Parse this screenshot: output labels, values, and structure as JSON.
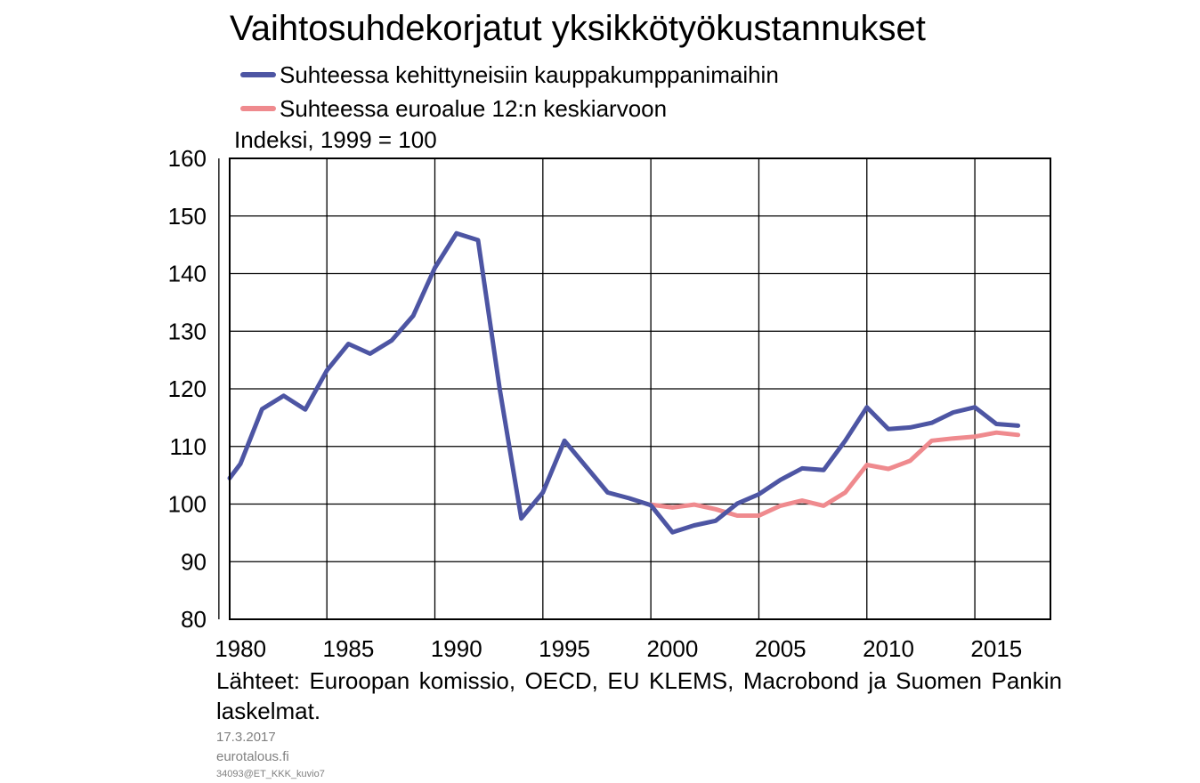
{
  "header": {
    "title": "Vaihtosuhdekorjatut yksikkötyökustannukset",
    "unit_label": "Indeksi, 1999 = 100"
  },
  "legend": [
    {
      "label": "Suhteessa kehittyneisiin kauppakumppanimaihin",
      "color": "#4d55a3"
    },
    {
      "label": "Suhteessa euroalue 12:n keskiarvoon",
      "color": "#ef8a8e"
    }
  ],
  "chart_data": {
    "type": "line",
    "title": "Vaihtosuhdekorjatut yksikkötyökustannukset",
    "ylabel": "Indeksi, 1999 = 100",
    "xlabel": "",
    "xlim": [
      1979.75,
      2017.75
    ],
    "ylim": [
      80,
      160
    ],
    "y_ticks": [
      80,
      90,
      100,
      110,
      120,
      130,
      140,
      150,
      160
    ],
    "x_ticks": [
      1980,
      1985,
      1990,
      1995,
      2000,
      2005,
      2010,
      2015
    ],
    "grid": true,
    "legend_position": "top",
    "series": [
      {
        "name": "Suhteessa kehittyneisiin kauppakumppanimaihin",
        "color": "#4d55a3",
        "points": [
          [
            1979.75,
            104.5
          ],
          [
            1980.25,
            107
          ],
          [
            1981.25,
            116.5
          ],
          [
            1982.25,
            118.8
          ],
          [
            1983.25,
            116.4
          ],
          [
            1984.25,
            123.2
          ],
          [
            1985.25,
            127.8
          ],
          [
            1986.25,
            126.1
          ],
          [
            1987.25,
            128.4
          ],
          [
            1988.25,
            132.7
          ],
          [
            1989.25,
            141
          ],
          [
            1990.25,
            147
          ],
          [
            1991.25,
            145.8
          ],
          [
            1992.25,
            120
          ],
          [
            1993.25,
            97.5
          ],
          [
            1994.25,
            102
          ],
          [
            1995.25,
            111
          ],
          [
            1996.25,
            106.5
          ],
          [
            1997.25,
            102
          ],
          [
            1998.25,
            101
          ],
          [
            1999.25,
            99.8
          ],
          [
            2000.25,
            95.1
          ],
          [
            2001.25,
            96.3
          ],
          [
            2002.25,
            97.1
          ],
          [
            2003.25,
            100.1
          ],
          [
            2004.25,
            101.7
          ],
          [
            2005.25,
            104.2
          ],
          [
            2006.25,
            106.2
          ],
          [
            2007.25,
            105.9
          ],
          [
            2008.25,
            111
          ],
          [
            2009.25,
            116.8
          ],
          [
            2010.25,
            113
          ],
          [
            2011.25,
            113.3
          ],
          [
            2012.25,
            114.1
          ],
          [
            2013.25,
            115.9
          ],
          [
            2014.25,
            116.8
          ],
          [
            2015.25,
            113.9
          ],
          [
            2016.25,
            113.6
          ]
        ]
      },
      {
        "name": "Suhteessa euroalue 12:n keskiarvoon",
        "color": "#ef8a8e",
        "points": [
          [
            1999.25,
            99.9
          ],
          [
            2000.25,
            99.4
          ],
          [
            2001.25,
            99.9
          ],
          [
            2002.25,
            99.1
          ],
          [
            2003.25,
            98
          ],
          [
            2004.25,
            98
          ],
          [
            2005.25,
            99.7
          ],
          [
            2006.25,
            100.6
          ],
          [
            2007.25,
            99.7
          ],
          [
            2008.25,
            102
          ],
          [
            2009.25,
            106.8
          ],
          [
            2010.25,
            106.1
          ],
          [
            2011.25,
            107.5
          ],
          [
            2012.25,
            111
          ],
          [
            2013.25,
            111.4
          ],
          [
            2014.25,
            111.7
          ],
          [
            2015.25,
            112.4
          ],
          [
            2016.25,
            112
          ]
        ]
      }
    ]
  },
  "footer": {
    "source": "Lähteet: Euroopan komissio, OECD, EU KLEMS, Macrobond ja Suomen Pankin laskelmat.",
    "date": "17.3.2017",
    "site": "eurotalous.fi",
    "code": "34093@ET_KKK_kuvio7"
  }
}
